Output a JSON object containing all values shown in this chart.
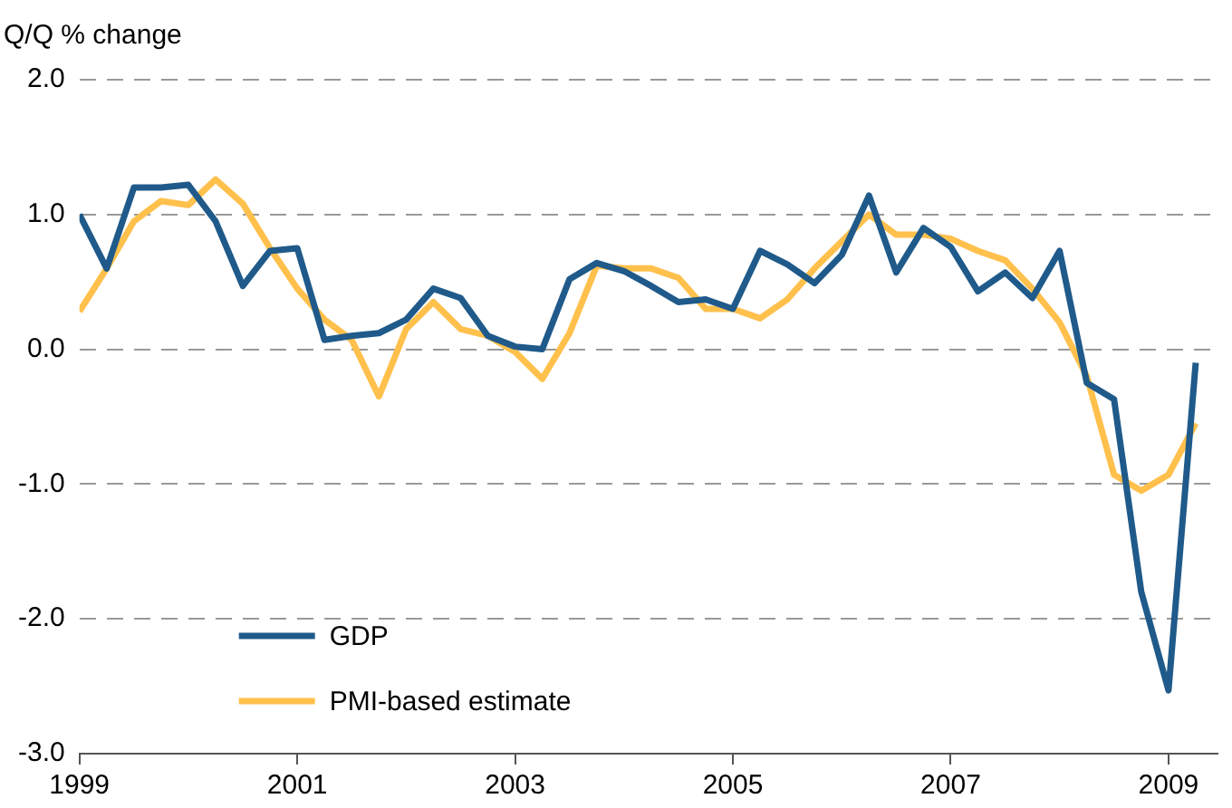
{
  "chart_data": {
    "type": "line",
    "ylabel": "Q/Q % change",
    "x": [
      1999,
      1999.25,
      1999.5,
      1999.75,
      2000,
      2000.25,
      2000.5,
      2000.75,
      2001,
      2001.25,
      2001.5,
      2001.75,
      2002,
      2002.25,
      2002.5,
      2002.75,
      2003,
      2003.25,
      2003.5,
      2003.75,
      2004,
      2004.25,
      2004.5,
      2004.75,
      2005,
      2005.25,
      2005.5,
      2005.75,
      2006,
      2006.25,
      2006.5,
      2006.75,
      2007,
      2007.25,
      2007.5,
      2007.75,
      2008,
      2008.25,
      2008.5,
      2008.75,
      2009,
      2009.25
    ],
    "series": [
      {
        "name": "GDP",
        "color": "#1f5a8a",
        "values": [
          1.0,
          0.6,
          1.2,
          1.2,
          1.22,
          0.95,
          0.47,
          0.73,
          0.75,
          0.07,
          0.1,
          0.12,
          0.22,
          0.45,
          0.38,
          0.1,
          0.02,
          0.0,
          0.52,
          0.64,
          0.58,
          0.47,
          0.35,
          0.37,
          0.3,
          0.73,
          0.63,
          0.49,
          0.7,
          1.14,
          0.57,
          0.9,
          0.76,
          0.43,
          0.57,
          0.38,
          0.73,
          -0.25,
          -0.37,
          -1.8,
          -2.53,
          -0.1
        ]
      },
      {
        "name": "PMI-based estimate",
        "color": "#ffc04c",
        "values": [
          0.28,
          0.6,
          0.95,
          1.1,
          1.07,
          1.26,
          1.08,
          0.75,
          0.45,
          0.22,
          0.07,
          -0.35,
          0.15,
          0.35,
          0.15,
          0.1,
          -0.02,
          -0.22,
          0.12,
          0.62,
          0.6,
          0.6,
          0.53,
          0.3,
          0.3,
          0.23,
          0.37,
          0.6,
          0.8,
          1.0,
          0.85,
          0.85,
          0.82,
          0.73,
          0.66,
          0.45,
          0.2,
          -0.2,
          -0.93,
          -1.05,
          -0.93,
          -0.55
        ]
      }
    ],
    "xlim": [
      1999,
      2009.45
    ],
    "xticks": [
      1999,
      2001,
      2003,
      2005,
      2007,
      2009
    ],
    "ylim": [
      -3,
      2
    ],
    "yticks": [
      {
        "value": -3,
        "label": "-3.0"
      },
      {
        "value": -2,
        "label": "-2.0"
      },
      {
        "value": -1,
        "label": "-1.0"
      },
      {
        "value": 0,
        "label": "0.0"
      },
      {
        "value": 1,
        "label": "1.0"
      },
      {
        "value": 2,
        "label": "2.0"
      }
    ],
    "grid": "y",
    "legend": "bottom left",
    "marker": "none",
    "line_style": "solid"
  }
}
